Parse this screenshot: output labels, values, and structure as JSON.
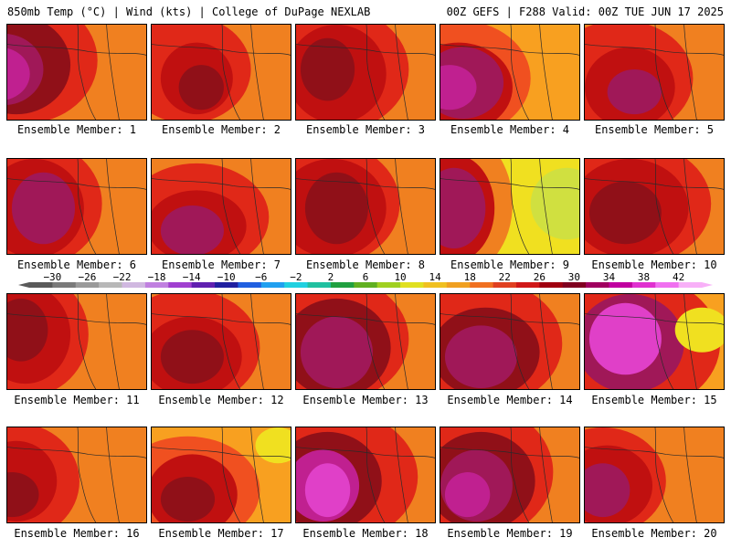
{
  "header": {
    "left": "850mb Temp (°C) | Wind (kts) | College of DuPage NEXLAB",
    "right": "00Z GEFS | F288 Valid: 00Z TUE JUN 17 2025"
  },
  "panels": [
    {
      "label": "Ensemble Member: 1"
    },
    {
      "label": "Ensemble Member: 2"
    },
    {
      "label": "Ensemble Member: 3"
    },
    {
      "label": "Ensemble Member: 4"
    },
    {
      "label": "Ensemble Member: 5"
    },
    {
      "label": "Ensemble Member: 6"
    },
    {
      "label": "Ensemble Member: 7"
    },
    {
      "label": "Ensemble Member: 8"
    },
    {
      "label": "Ensemble Member: 9"
    },
    {
      "label": "Ensemble Member: 10"
    },
    {
      "label": "Ensemble Member: 11"
    },
    {
      "label": "Ensemble Member: 12"
    },
    {
      "label": "Ensemble Member: 13"
    },
    {
      "label": "Ensemble Member: 14"
    },
    {
      "label": "Ensemble Member: 15"
    },
    {
      "label": "Ensemble Member: 16"
    },
    {
      "label": "Ensemble Member: 17"
    },
    {
      "label": "Ensemble Member: 18"
    },
    {
      "label": "Ensemble Member: 19"
    },
    {
      "label": "Ensemble Member: 20"
    }
  ],
  "colorbar": {
    "labels": [
      "−30",
      "−26",
      "−22",
      "−18",
      "−14",
      "−10",
      "−6",
      "−2",
      "2",
      "6",
      "10",
      "14",
      "18",
      "22",
      "26",
      "30",
      "34",
      "38",
      "42"
    ],
    "colors": [
      "#5a5a5a",
      "#7a7a7a",
      "#9a9a9a",
      "#b8b8b8",
      "#d0b8e0",
      "#c080e0",
      "#a040d0",
      "#6020b0",
      "#2020a0",
      "#2060e0",
      "#20a0f0",
      "#20d0e0",
      "#20c0a0",
      "#20a040",
      "#60b020",
      "#a0d020",
      "#e0e020",
      "#f0c020",
      "#f0a020",
      "#f07020",
      "#e04020",
      "#d01818",
      "#a00010",
      "#800020",
      "#a00060",
      "#c000a0",
      "#e030d0",
      "#f070f0",
      "#f8b0f8"
    ],
    "tick_start": -30,
    "tick_end": 42
  },
  "temp_colors": {
    "t14": "#d0e040",
    "t16": "#f0e020",
    "t18": "#f8c020",
    "t20": "#f8a020",
    "t22": "#f08020",
    "t24": "#f05020",
    "t26": "#e02818",
    "t28": "#c01010",
    "t30": "#901018",
    "t32": "#a01858",
    "t34": "#c02090",
    "t36": "#e040c8"
  }
}
